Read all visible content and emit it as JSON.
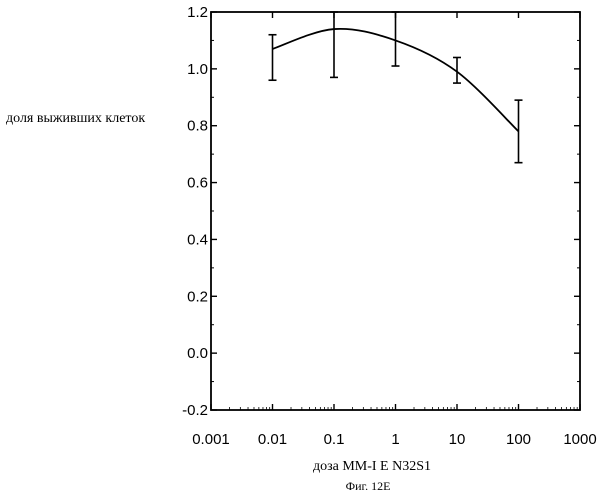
{
  "chart_data": {
    "type": "line",
    "xscale": "log",
    "xlim": [
      0.001,
      1000
    ],
    "ylim": [
      -0.2,
      1.2
    ],
    "xticks": [
      0.001,
      0.01,
      0.1,
      1,
      10,
      100,
      1000
    ],
    "xtick_labels": [
      "0.001",
      "0.01",
      "0.1",
      "1",
      "10",
      "100",
      "1000"
    ],
    "yticks": [
      1.2,
      1.0,
      0.8,
      0.6,
      0.4,
      0.2,
      0.0,
      -0.2
    ],
    "ytick_labels": [
      "1.2",
      "1.0",
      "0.8",
      "0.6",
      "0.4",
      "0.2",
      "0.0",
      "-0.2"
    ],
    "xlabel": "доза MM-I  E  N32S1",
    "ylabel": "доля выживших клеток",
    "caption": "Фиг. 12E",
    "grid": false,
    "series": [
      {
        "x": [
          0.01,
          0.1,
          1,
          10,
          100
        ],
        "y": [
          1.07,
          1.14,
          1.1,
          0.99,
          0.78
        ],
        "err_low": [
          0.96,
          0.97,
          1.01,
          0.95,
          0.67
        ],
        "err_high": [
          1.12,
          1.2,
          1.2,
          1.04,
          0.89
        ]
      }
    ]
  },
  "colors": {
    "ink": "#000000",
    "background": "#ffffff"
  }
}
